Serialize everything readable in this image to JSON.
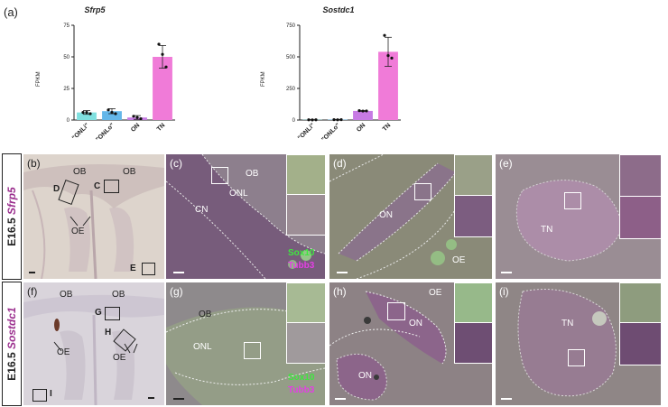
{
  "panel_a_label": "(a)",
  "chart_data": [
    {
      "type": "bar",
      "title": "Sfrp5",
      "ylabel": "FPKM",
      "categories": [
        "\"ONLi\"",
        "\"ONLo\"",
        "ON",
        "TN"
      ],
      "values": [
        6,
        7,
        2,
        50
      ],
      "errors": [
        1.5,
        2,
        1.5,
        9
      ],
      "points": [
        [
          6,
          6,
          5
        ],
        [
          8,
          6,
          5
        ],
        [
          3,
          2,
          1
        ],
        [
          60,
          52,
          42
        ]
      ],
      "ylim": [
        0,
        75
      ],
      "yticks": [
        0,
        25,
        50,
        75
      ],
      "colors": [
        "#7fe0df",
        "#64b7e9",
        "#c77be4",
        "#f07bd8"
      ]
    },
    {
      "type": "bar",
      "title": "Sostdc1",
      "ylabel": "FPKM",
      "categories": [
        "\"ONLi\"",
        "\"ONLo\"",
        "ON",
        "TN"
      ],
      "values": [
        2,
        3,
        72,
        540
      ],
      "errors": [
        1,
        1,
        3,
        115
      ],
      "points": [
        [
          2,
          1,
          2
        ],
        [
          3,
          2,
          3
        ],
        [
          74,
          71,
          72
        ],
        [
          670,
          510,
          490
        ]
      ],
      "ylim": [
        0,
        750
      ],
      "yticks": [
        0,
        250,
        500,
        750
      ],
      "colors": [
        "#7fe0df",
        "#64b7e9",
        "#c77be4",
        "#f07bd8"
      ]
    }
  ],
  "row1": {
    "stage": "E16.5",
    "gene": "Sfrp5",
    "b": {
      "letter": "(b)",
      "ob1": "OB",
      "ob2": "OB",
      "d": "D",
      "c": "C",
      "oe": "OE",
      "e": "E"
    },
    "c": {
      "letter": "(c)",
      "ob": "OB",
      "onl": "ONL",
      "cn": "CN",
      "leg1": "Sox10",
      "leg2": "Tubb3"
    },
    "d": {
      "letter": "(d)",
      "on": "ON",
      "oe": "OE"
    },
    "e": {
      "letter": "(e)",
      "tn": "TN"
    }
  },
  "row2": {
    "stage": "E16.5",
    "gene": "Sostdc1",
    "f": {
      "letter": "(f)",
      "ob1": "OB",
      "ob2": "OB",
      "g": "G",
      "h": "H",
      "oe1": "OE",
      "oe2": "OE",
      "i": "I"
    },
    "g": {
      "letter": "(g)",
      "ob": "OB",
      "onl": "ONL",
      "leg1": "Sox10",
      "leg2": "Tubb3"
    },
    "h": {
      "letter": "(h)",
      "oe": "OE",
      "on1": "ON",
      "on2": "ON"
    },
    "i": {
      "letter": "(i)",
      "tn": "TN"
    }
  }
}
